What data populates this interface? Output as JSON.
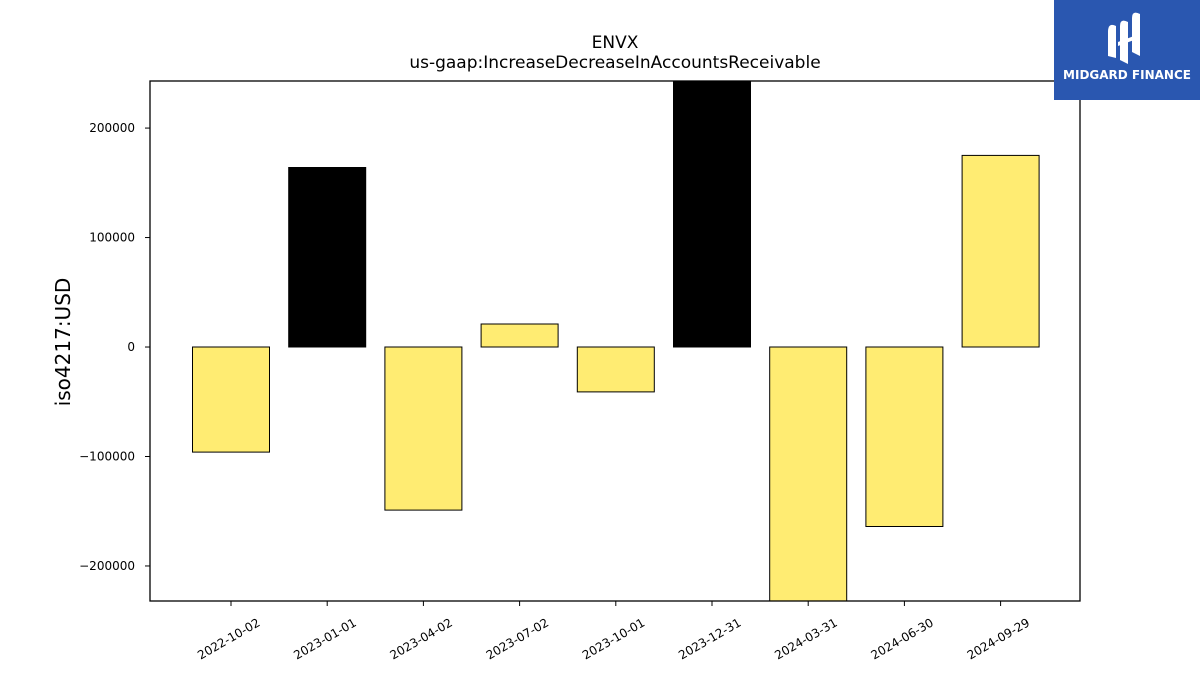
{
  "chart_data": {
    "type": "bar",
    "title": "ENVX",
    "subtitle": "us-gaap:IncreaseDecreaseInAccountsReceivable",
    "xlabel": "",
    "ylabel": "iso4217:USD",
    "categories": [
      "2022-10-02",
      "2023-01-01",
      "2023-04-02",
      "2023-07-02",
      "2023-10-01",
      "2023-12-31",
      "2024-03-31",
      "2024-06-30",
      "2024-09-29"
    ],
    "values": [
      -96000,
      164000,
      -149000,
      21000,
      -41000,
      243000,
      -233000,
      -164000,
      175000
    ],
    "bar_colors": [
      "#ffec72",
      "#000000",
      "#ffec72",
      "#ffec72",
      "#ffec72",
      "#000000",
      "#ffec72",
      "#ffec72",
      "#ffec72"
    ],
    "yticks": [
      -200000,
      -100000,
      0,
      100000,
      200000
    ],
    "ytick_labels": [
      "−200000",
      "−100000",
      "0",
      "100000",
      "200000"
    ],
    "ylim": [
      -232000,
      243000
    ],
    "grid": false,
    "legend": "none"
  },
  "logo": {
    "text": "MIDGARD FINANCE",
    "background": "#2a57b0"
  }
}
